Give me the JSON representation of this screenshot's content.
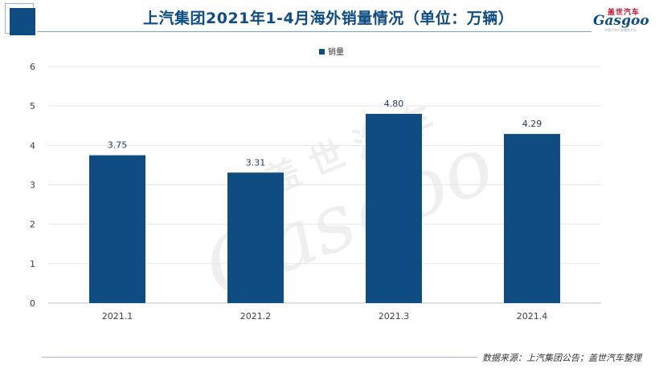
{
  "header": {
    "title": "上汽集团2021年1-4月海外销量情况（单位：万辆）",
    "logo_cn": "盖世汽车",
    "logo_en": "Gasgoo",
    "logo_sub": "中国汽车产业服务平台"
  },
  "footer": {
    "source": "数据来源：上汽集团公告；盖世汽车整理"
  },
  "watermark": {
    "cn": "盖 世 汽 车",
    "en": "Gasgoo"
  },
  "colors": {
    "bar": "#0f4c81",
    "title": "#0f4c81",
    "grid": "#e6e6e6"
  },
  "chart_data": {
    "type": "bar",
    "title": "上汽集团2021年1-4月海外销量情况（单位：万辆）",
    "categories": [
      "2021.1",
      "2021.2",
      "2021.3",
      "2021.4"
    ],
    "series": [
      {
        "name": "销量",
        "values": [
          3.75,
          3.31,
          4.8,
          4.29
        ]
      }
    ],
    "value_labels": [
      "3.75",
      "3.31",
      "4.80",
      "4.29"
    ],
    "xlabel": "",
    "ylabel": "",
    "ylim": [
      0,
      6
    ],
    "yticks": [
      0,
      1,
      2,
      3,
      4,
      5,
      6
    ],
    "grid": true,
    "legend": "top-center"
  }
}
